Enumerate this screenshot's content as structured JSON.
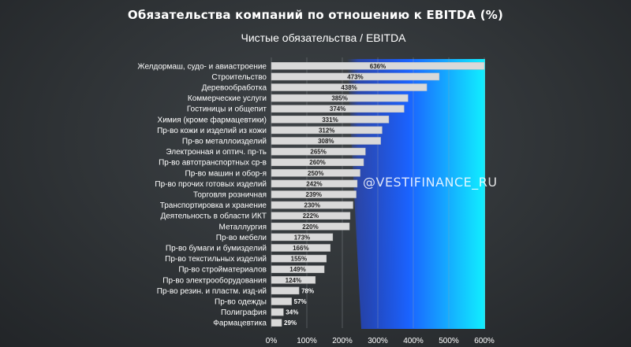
{
  "chart_data": {
    "type": "bar",
    "orientation": "horizontal",
    "title": "Обязательства компаний по отношению к EBITDA (%)",
    "subtitle": "Чистые обязательства / EBITDA",
    "categories": [
      "Желдормаш, судо- и авиастроение",
      "Строительство",
      "Деревообработка",
      "Коммерческие услуги",
      "Гостиницы и общепит",
      "Химия (кроме фармацевтики)",
      "Пр-во кожи и изделий из кожи",
      "Пр-во металлоизделий",
      "Электронная и оптич. пр-ть",
      "Пр-во автотранспортных ср-в",
      "Пр-во машин и обор-я",
      "Пр-во прочих готовых изделий",
      "Торговля розничная",
      "Транспортировка и хранение",
      "Деятельность в области ИКТ",
      "Металлургия",
      "Пр-во мебели",
      "Пр-во бумаги и бумизделий",
      "Пр-во текстильных изделий",
      "Пр-во стройматериалов",
      "Пр-во электрооборудования",
      "Пр-во резин. и пластм. изд-ий",
      "Пр-во одежды",
      "Полиграфия",
      "Фармацевтика"
    ],
    "values": [
      636,
      473,
      438,
      385,
      374,
      331,
      312,
      308,
      265,
      260,
      250,
      242,
      239,
      230,
      222,
      220,
      173,
      166,
      155,
      149,
      124,
      78,
      57,
      34,
      29
    ],
    "value_labels": [
      "636%",
      "473%",
      "438%",
      "385%",
      "374%",
      "331%",
      "312%",
      "308%",
      "265%",
      "260%",
      "250%",
      "242%",
      "239%",
      "230%",
      "222%",
      "220%",
      "173%",
      "166%",
      "155%",
      "149%",
      "124%",
      "78%",
      "57%",
      "34%",
      "29%"
    ],
    "xlim": [
      0,
      600
    ],
    "x_ticks": [
      "0%",
      "100%",
      "200%",
      "300%",
      "400%",
      "500%",
      "600%"
    ],
    "grid": true,
    "xlabel": "",
    "ylabel": "",
    "colors": {
      "bar": "#d9d9d9",
      "bar_stroke": "#bfbfbf",
      "highlight_dark": "#1f4fff",
      "highlight_light": "#10f0ff",
      "grid": "#9aa0a6"
    }
  },
  "watermark": "@VESTIFINANCE_RU"
}
